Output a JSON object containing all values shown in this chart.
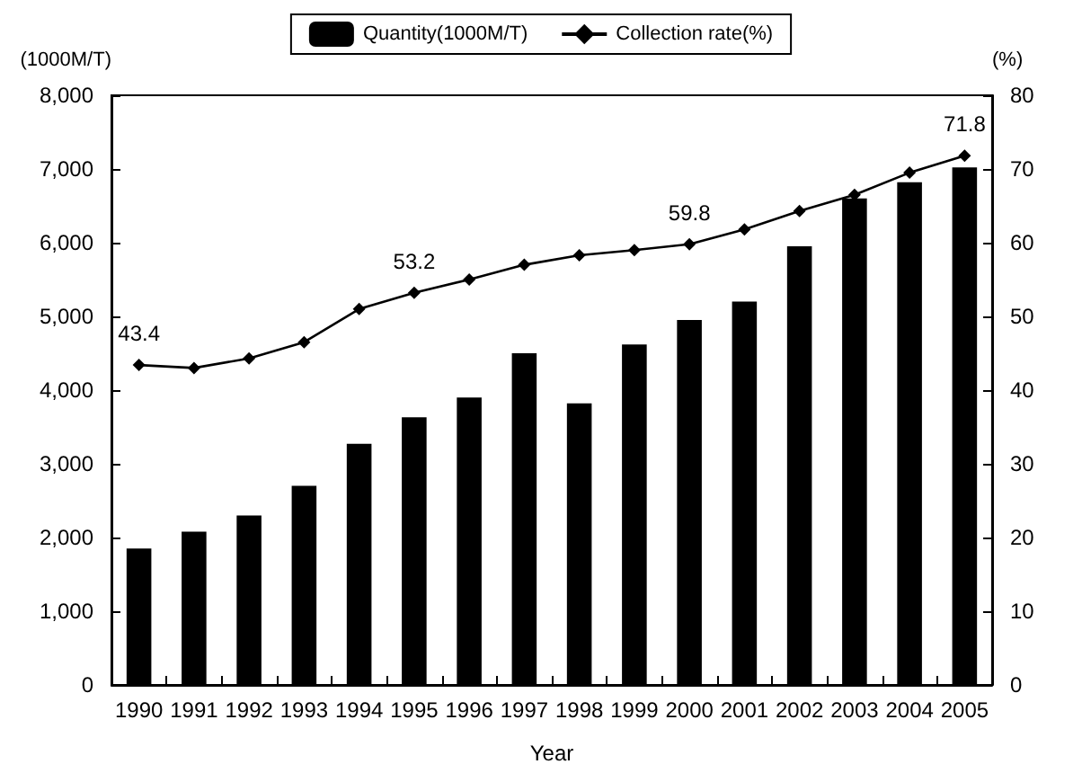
{
  "chart_data": {
    "type": "bar",
    "xlabel": "Year",
    "ylabel": "(1000M/T)",
    "y2label": "(%)",
    "categories": [
      "1990",
      "1991",
      "1992",
      "1993",
      "1994",
      "1995",
      "1996",
      "1997",
      "1998",
      "1999",
      "2000",
      "2001",
      "2002",
      "2003",
      "2004",
      "2005"
    ],
    "series": [
      {
        "name": "Quantity(1000M/T)",
        "color": "#000000",
        "values": [
          1850,
          2080,
          2300,
          2700,
          3270,
          3630,
          3900,
          4500,
          3820,
          4620,
          4950,
          5200,
          5950,
          6600,
          6820,
          7020
        ]
      },
      {
        "name": "Collection rate(%)",
        "type": "line",
        "axis": "y2",
        "color": "#000000",
        "marker": "diamond",
        "values": [
          43.4,
          43.0,
          44.3,
          46.5,
          51.0,
          53.2,
          55.0,
          57.0,
          58.3,
          59.0,
          59.8,
          61.8,
          64.3,
          66.5,
          69.5,
          71.8
        ],
        "value_labels": [
          "43.4",
          null,
          null,
          null,
          null,
          "53.2",
          null,
          null,
          null,
          null,
          "59.8",
          null,
          null,
          null,
          null,
          "71.8"
        ]
      }
    ],
    "ylim": [
      0,
      8000
    ],
    "yticks": [
      {
        "value": 0,
        "label": "0"
      },
      {
        "value": 1000,
        "label": "1,000"
      },
      {
        "value": 2000,
        "label": "2,000"
      },
      {
        "value": 3000,
        "label": "3,000"
      },
      {
        "value": 4000,
        "label": "4,000"
      },
      {
        "value": 5000,
        "label": "5,000"
      },
      {
        "value": 6000,
        "label": "6,000"
      },
      {
        "value": 7000,
        "label": "7,000"
      },
      {
        "value": 8000,
        "label": "8,000"
      }
    ],
    "y2lim": [
      0,
      80
    ],
    "y2ticks": [
      0,
      10,
      20,
      30,
      40,
      50,
      60,
      70,
      80
    ],
    "legend": "top",
    "grid": false
  }
}
